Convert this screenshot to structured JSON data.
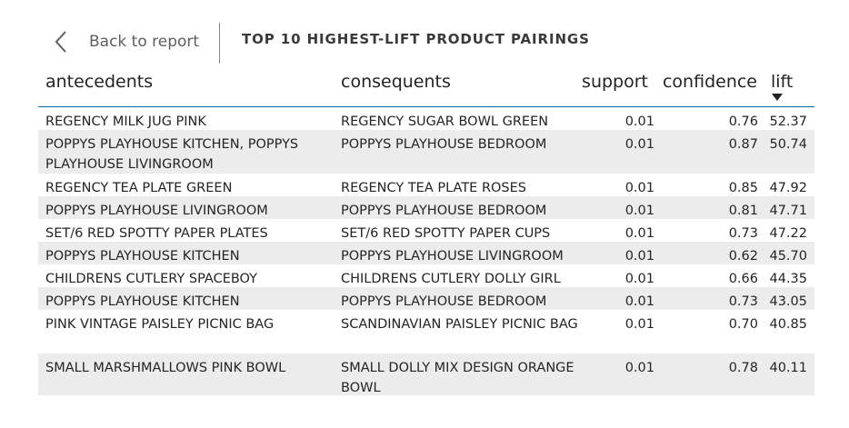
{
  "header": {
    "back_label": "Back to report",
    "title": "TOP 10 HIGHEST-LIFT PRODUCT PAIRINGS"
  },
  "table": {
    "columns": {
      "antecedents": "antecedents",
      "consequents": "consequents",
      "support": "support",
      "confidence": "confidence",
      "lift": "lift"
    },
    "sort": {
      "column": "lift",
      "direction": "descending"
    },
    "rows": [
      {
        "antecedents": "REGENCY MILK JUG PINK",
        "consequents": "REGENCY SUGAR BOWL GREEN",
        "support": "0.01",
        "confidence": "0.76",
        "lift": "52.37"
      },
      {
        "antecedents": "POPPYS PLAYHOUSE KITCHEN, POPPYS PLAYHOUSE LIVINGROOM",
        "consequents": "POPPYS PLAYHOUSE BEDROOM",
        "support": "0.01",
        "confidence": "0.87",
        "lift": "50.74"
      },
      {
        "antecedents": "REGENCY TEA PLATE GREEN",
        "consequents": "REGENCY TEA PLATE ROSES",
        "support": "0.01",
        "confidence": "0.85",
        "lift": "47.92"
      },
      {
        "antecedents": "POPPYS PLAYHOUSE LIVINGROOM",
        "consequents": "POPPYS PLAYHOUSE BEDROOM",
        "support": "0.01",
        "confidence": "0.81",
        "lift": "47.71"
      },
      {
        "antecedents": "SET/6 RED SPOTTY PAPER PLATES",
        "consequents": "SET/6 RED SPOTTY PAPER CUPS",
        "support": "0.01",
        "confidence": "0.73",
        "lift": "47.22"
      },
      {
        "antecedents": "POPPYS PLAYHOUSE KITCHEN",
        "consequents": "POPPYS PLAYHOUSE LIVINGROOM",
        "support": "0.01",
        "confidence": "0.62",
        "lift": "45.70"
      },
      {
        "antecedents": "CHILDRENS CUTLERY SPACEBOY",
        "consequents": "CHILDRENS CUTLERY DOLLY GIRL",
        "support": "0.01",
        "confidence": "0.66",
        "lift": "44.35"
      },
      {
        "antecedents": "POPPYS PLAYHOUSE KITCHEN",
        "consequents": "POPPYS PLAYHOUSE BEDROOM",
        "support": "0.01",
        "confidence": "0.73",
        "lift": "43.05"
      },
      {
        "antecedents": "PINK VINTAGE PAISLEY PICNIC BAG",
        "consequents": "SCANDINAVIAN PAISLEY PICNIC BAG",
        "support": "0.01",
        "confidence": "0.70",
        "lift": "40.85"
      },
      {
        "antecedents": "SMALL MARSHMALLOWS PINK BOWL",
        "consequents": "SMALL DOLLY MIX DESIGN ORANGE BOWL",
        "support": "0.01",
        "confidence": "0.78",
        "lift": "40.11"
      }
    ]
  },
  "colors": {
    "accent_line": "#0a6e9a",
    "band": "#ececec",
    "text": "#252423"
  }
}
